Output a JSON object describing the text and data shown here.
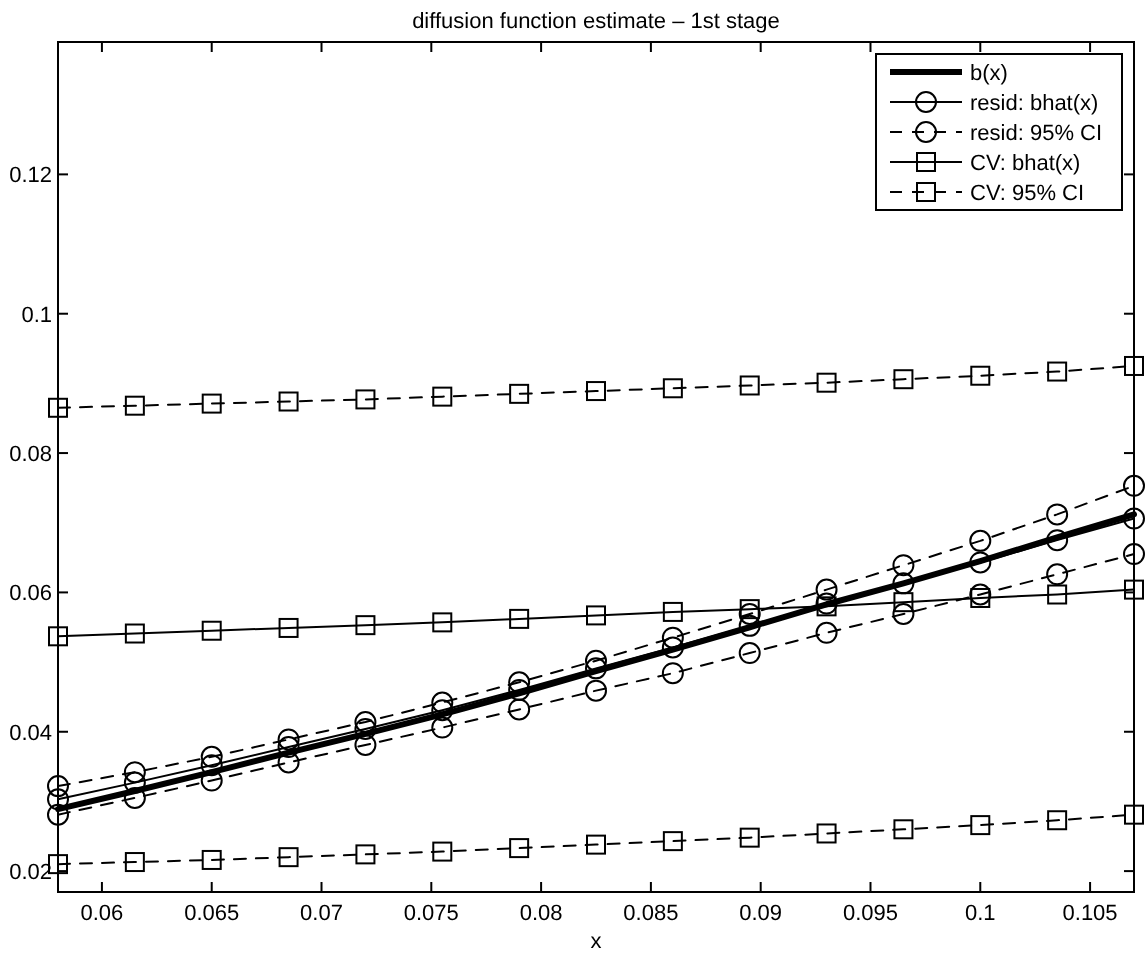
{
  "chart_data": {
    "type": "line",
    "title": "diffusion function estimate – 1st stage",
    "xlabel": "x",
    "x": [
      0.058,
      0.0615,
      0.065,
      0.0685,
      0.072,
      0.0755,
      0.079,
      0.0825,
      0.086,
      0.0895,
      0.093,
      0.0965,
      0.1,
      0.1035,
      0.107
    ],
    "xlim": [
      0.058,
      0.107
    ],
    "xticks": [
      0.06,
      0.065,
      0.07,
      0.075,
      0.08,
      0.085,
      0.09,
      0.095,
      0.1,
      0.105
    ],
    "ylim": [
      0.017,
      0.139
    ],
    "yticks": [
      0.02,
      0.04,
      0.06,
      0.08,
      0.1,
      0.12
    ],
    "grid": false,
    "legend": "top right",
    "series": [
      {
        "name": "b(x)",
        "color": "#000000",
        "marker": "none",
        "line_style": "solid",
        "values": [
          0.0289,
          0.0315,
          0.0342,
          0.037,
          0.0397,
          0.0425,
          0.0455,
          0.0487,
          0.0518,
          0.055,
          0.0583,
          0.0613,
          0.0645,
          0.0679,
          0.0712
        ]
      },
      {
        "name": "resid: bhat(x)",
        "color": "#000000",
        "marker": "circle",
        "line_style": "solid",
        "values": [
          0.0303,
          0.0327,
          0.0352,
          0.0378,
          0.0404,
          0.0431,
          0.046,
          0.0491,
          0.0521,
          0.0552,
          0.0584,
          0.0613,
          0.0643,
          0.0675,
          0.0706
        ]
      },
      {
        "name": "resid: 95% CI",
        "color": "#000000",
        "marker": "circle",
        "line_style": "dashed",
        "values": [
          0.0322,
          0.0342,
          0.0364,
          0.0389,
          0.0414,
          0.0442,
          0.0471,
          0.0502,
          0.0535,
          0.0569,
          0.0604,
          0.0639,
          0.0674,
          0.0712,
          0.0753
        ]
      },
      {
        "color": "#000000",
        "marker": "circle",
        "line_style": "dashed",
        "values": [
          0.0281,
          0.0305,
          0.033,
          0.0356,
          0.0381,
          0.0406,
          0.0432,
          0.0459,
          0.0484,
          0.0513,
          0.0542,
          0.0569,
          0.0597,
          0.0626,
          0.0655
        ]
      },
      {
        "name": "CV: bhat(x)",
        "color": "#000000",
        "marker": "square",
        "line_style": "solid",
        "values": [
          0.0537,
          0.0541,
          0.0545,
          0.0549,
          0.0553,
          0.0557,
          0.0562,
          0.0567,
          0.0572,
          0.0576,
          0.058,
          0.0586,
          0.0592,
          0.0597,
          0.0604
        ]
      },
      {
        "name": "CV: 95% CI",
        "color": "#000000",
        "marker": "square",
        "line_style": "dashed",
        "values": [
          0.0865,
          0.0868,
          0.0871,
          0.0874,
          0.0877,
          0.0881,
          0.0885,
          0.0889,
          0.0893,
          0.0897,
          0.0901,
          0.0906,
          0.0911,
          0.0917,
          0.0925
        ]
      },
      {
        "color": "#000000",
        "marker": "square",
        "line_style": "dashed",
        "values": [
          0.021,
          0.0213,
          0.0216,
          0.022,
          0.0224,
          0.0228,
          0.0233,
          0.0238,
          0.0243,
          0.0248,
          0.0254,
          0.026,
          0.0266,
          0.0273,
          0.0281
        ]
      }
    ]
  }
}
